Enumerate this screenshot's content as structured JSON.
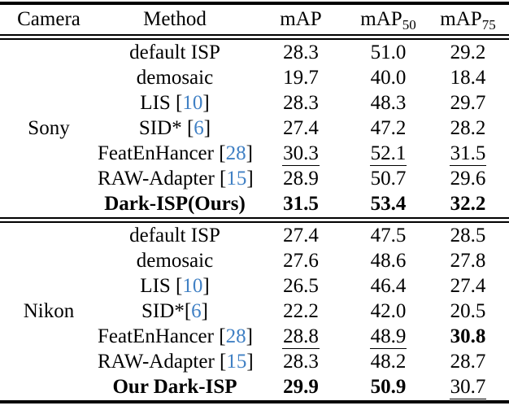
{
  "colors": {
    "citation_blue": "#4080c4",
    "text": "#000000",
    "background": "#ffffff"
  },
  "header": {
    "camera": "Camera",
    "method": "Method",
    "map": "mAP",
    "map50": {
      "base": "mAP",
      "sub": "50"
    },
    "map75": {
      "base": "mAP",
      "sub": "75"
    }
  },
  "sections": [
    {
      "camera": "Sony",
      "rows": [
        {
          "m1": "default ISP",
          "cite": "",
          "m2": "",
          "map": "28.3",
          "map50": "51.0",
          "map75": "29.2"
        },
        {
          "m1": "demosaic",
          "cite": "",
          "m2": "",
          "map": "19.7",
          "map50": "40.0",
          "map75": "18.4"
        },
        {
          "m1": "LIS [",
          "cite": "10",
          "m2": "]",
          "map": "28.3",
          "map50": "48.3",
          "map75": "29.7"
        },
        {
          "m1": "SID* [",
          "cite": "6",
          "m2": "]",
          "map": "27.4",
          "map50": "47.2",
          "map75": "28.2"
        },
        {
          "m1": "FeatEnHancer [",
          "cite": "28",
          "m2": "]",
          "map": "30.3",
          "map50": "52.1",
          "map75": "31.5"
        },
        {
          "m1": "RAW-Adapter [",
          "cite": "15",
          "m2": "]",
          "map": "28.9",
          "map50": "50.7",
          "map75": "29.6"
        },
        {
          "m1": "Dark-ISP(Ours)",
          "cite": "",
          "m2": "",
          "map": "31.5",
          "map50": "53.4",
          "map75": "32.2"
        }
      ]
    },
    {
      "camera": "Nikon",
      "rows": [
        {
          "m1": "default ISP",
          "cite": "",
          "m2": "",
          "map": "27.4",
          "map50": "47.5",
          "map75": "28.5"
        },
        {
          "m1": "demosaic",
          "cite": "",
          "m2": "",
          "map": "27.6",
          "map50": "48.6",
          "map75": "27.8"
        },
        {
          "m1": "LIS [",
          "cite": "10",
          "m2": "]",
          "map": "26.5",
          "map50": "46.4",
          "map75": "27.4"
        },
        {
          "m1": "SID*[",
          "cite": "6",
          "m2": "]",
          "map": "22.2",
          "map50": "42.0",
          "map75": "20.5"
        },
        {
          "m1": "FeatEnHancer [",
          "cite": "28",
          "m2": "]",
          "map": "28.8",
          "map50": "48.9",
          "map75": "30.8"
        },
        {
          "m1": "RAW-Adapter [",
          "cite": "15",
          "m2": "]",
          "map": "28.3",
          "map50": "48.2",
          "map75": "28.7"
        },
        {
          "m1": "Our Dark-ISP",
          "cite": "",
          "m2": "",
          "map": "29.9",
          "map50": "50.9",
          "map75": "30.7"
        }
      ]
    }
  ]
}
